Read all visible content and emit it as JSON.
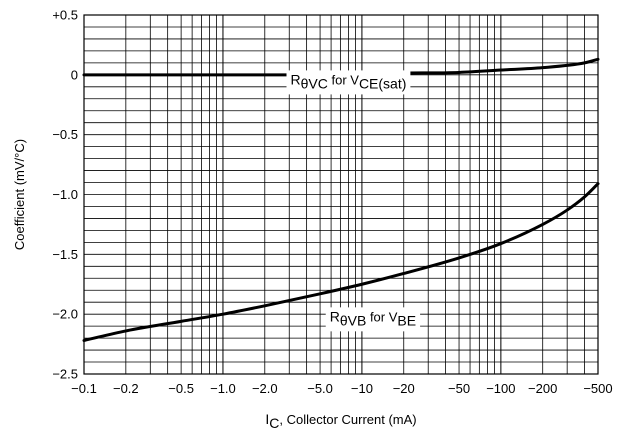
{
  "chart_data": {
    "type": "line",
    "title": "",
    "xscale": "log",
    "xlim": [
      -0.1,
      -500
    ],
    "ylim": [
      -2.5,
      0.5
    ],
    "grid": true,
    "xlabel": {
      "main": "I",
      "sub": "C",
      "rest": ", Collector Current (mA)"
    },
    "ylabel": "Coefficient (mV/°C)",
    "x_ticks": [
      {
        "value": -0.1,
        "label": "−0.1"
      },
      {
        "value": -0.2,
        "label": "−0.2"
      },
      {
        "value": -0.5,
        "label": "−0.5"
      },
      {
        "value": -1.0,
        "label": "−1.0"
      },
      {
        "value": -2.0,
        "label": "−2.0"
      },
      {
        "value": -5.0,
        "label": "−5.0"
      },
      {
        "value": -10,
        "label": "−10"
      },
      {
        "value": -20,
        "label": "−20"
      },
      {
        "value": -50,
        "label": "−50"
      },
      {
        "value": -100,
        "label": "−100"
      },
      {
        "value": -200,
        "label": "−200"
      },
      {
        "value": -500,
        "label": "−500"
      }
    ],
    "y_ticks": [
      {
        "value": 0.5,
        "label": "+0.5"
      },
      {
        "value": 0,
        "label": "0"
      },
      {
        "value": -0.5,
        "label": "−0.5"
      },
      {
        "value": -1.0,
        "label": "−1.0"
      },
      {
        "value": -1.5,
        "label": "−1.5"
      },
      {
        "value": -2.0,
        "label": "−2.0"
      },
      {
        "value": -2.5,
        "label": "−2.5"
      }
    ],
    "series": [
      {
        "name": "RθVC for VCE(sat)",
        "label_parts": {
          "main": "R",
          "sub": "θVC",
          "mid": " for V",
          "sub2": "CE(sat)"
        },
        "label_at": {
          "x": -8.0,
          "y": -0.08
        },
        "x": [
          -0.1,
          -0.2,
          -0.5,
          -1,
          -2,
          -5,
          -10,
          -20,
          -50,
          -100,
          -200,
          -400,
          -500
        ],
        "y": [
          0,
          0,
          0,
          0,
          0,
          0,
          0.01,
          0.015,
          0.02,
          0.04,
          0.06,
          0.1,
          0.13
        ]
      },
      {
        "name": "RθVB for VBE",
        "label_parts": {
          "main": "R",
          "sub": "θVB",
          "mid": " for V",
          "sub2": "BE"
        },
        "label_at": {
          "x": -12.0,
          "y": -2.06
        },
        "x": [
          -0.1,
          -0.2,
          -0.5,
          -1,
          -2,
          -5,
          -10,
          -20,
          -50,
          -100,
          -200,
          -300,
          -400,
          -500
        ],
        "y": [
          -2.22,
          -2.14,
          -2.06,
          -2.0,
          -1.93,
          -1.83,
          -1.75,
          -1.66,
          -1.53,
          -1.41,
          -1.25,
          -1.13,
          -1.02,
          -0.91
        ]
      }
    ]
  }
}
